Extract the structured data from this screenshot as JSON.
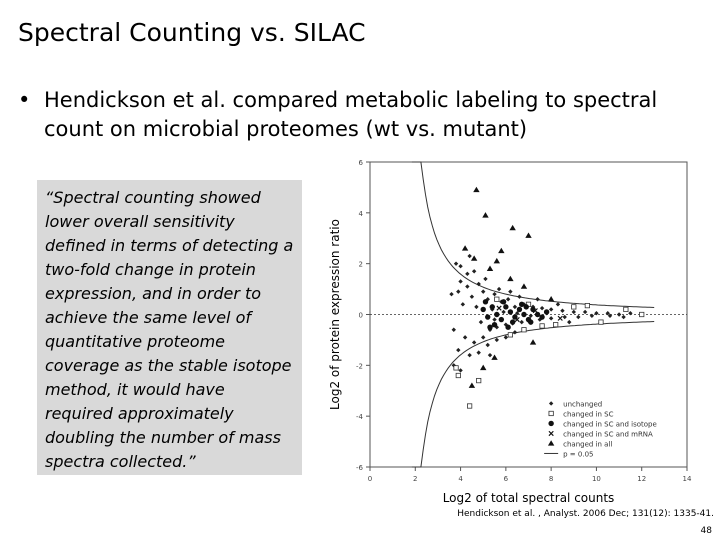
{
  "slide": {
    "title": "Spectral Counting vs. SILAC",
    "bullet_marker": "•",
    "bullet_text": "Hendickson et al. compared metabolic labeling to spectral count on microbial proteomes (wt vs. mutant)",
    "quote": "“Spectral counting showed lower overall sensitivity defined in terms of detecting a two-fold change in protein expression, and in order to achieve the same level of quantitative proteome coverage as the stable isotope method, it would have required approximately doubling the number of mass spectra collected.”",
    "citation": "Hendickson et al. , Analyst. 2006 Dec; 131(12): 1335-41.",
    "slide_number": "48"
  },
  "chart_data": {
    "type": "scatter",
    "xlabel": "Log2 of total spectral counts",
    "ylabel": "Log2 of protein expression ratio",
    "xlim": [
      0,
      14
    ],
    "ylim": [
      -6,
      6
    ],
    "xticks": [
      0,
      2,
      4,
      6,
      8,
      10,
      12,
      14
    ],
    "yticks": [
      -6,
      -4,
      -2,
      0,
      2,
      4,
      6
    ],
    "grid": false,
    "reference_line_y": 0,
    "legend_position": "bottom-right",
    "legend": [
      {
        "label": "unchanged",
        "marker": "diamond"
      },
      {
        "label": "changed in SC",
        "marker": "square-open"
      },
      {
        "label": "changed in SC and isotope",
        "marker": "circle"
      },
      {
        "label": "changed in SC and mRNA",
        "marker": "x"
      },
      {
        "label": "changed in all",
        "marker": "triangle"
      },
      {
        "label": "p = 0.05",
        "marker": "line"
      }
    ],
    "series": [
      {
        "name": "unchanged",
        "marker": "diamond",
        "points": [
          [
            4.3,
            1.6
          ],
          [
            4.0,
            1.3
          ],
          [
            3.9,
            0.9
          ],
          [
            4.3,
            1.1
          ],
          [
            4.6,
            1.7
          ],
          [
            4.8,
            1.2
          ],
          [
            5.0,
            0.9
          ],
          [
            4.5,
            0.7
          ],
          [
            5.2,
            0.6
          ],
          [
            5.5,
            0.8
          ],
          [
            5.8,
            0.5
          ],
          [
            6.1,
            0.6
          ],
          [
            6.4,
            0.3
          ],
          [
            6.8,
            0.4
          ],
          [
            7.2,
            0.3
          ],
          [
            7.6,
            0.25
          ],
          [
            8.0,
            0.2
          ],
          [
            8.5,
            0.15
          ],
          [
            9.0,
            0.1
          ],
          [
            9.5,
            0.1
          ],
          [
            10.0,
            0.05
          ],
          [
            10.5,
            0.05
          ],
          [
            11.0,
            0.0
          ],
          [
            11.5,
            0.05
          ],
          [
            4.2,
            -0.9
          ],
          [
            4.6,
            -1.1
          ],
          [
            5.0,
            -0.9
          ],
          [
            5.3,
            -0.6
          ],
          [
            5.6,
            -0.5
          ],
          [
            6.0,
            -0.4
          ],
          [
            6.3,
            -0.35
          ],
          [
            6.7,
            -0.3
          ],
          [
            7.0,
            -0.25
          ],
          [
            7.5,
            -0.2
          ],
          [
            8.0,
            -0.15
          ],
          [
            8.6,
            -0.1
          ],
          [
            9.2,
            -0.1
          ],
          [
            9.8,
            -0.05
          ],
          [
            10.6,
            -0.05
          ],
          [
            11.2,
            -0.1
          ],
          [
            3.9,
            -1.4
          ],
          [
            4.4,
            -1.6
          ],
          [
            4.8,
            -1.5
          ],
          [
            5.2,
            -1.2
          ],
          [
            5.6,
            -1.0
          ],
          [
            6.0,
            -0.9
          ],
          [
            6.4,
            -0.7
          ],
          [
            4.1,
            0.4
          ],
          [
            4.7,
            0.3
          ],
          [
            5.4,
            0.2
          ],
          [
            5.9,
            0.1
          ],
          [
            6.5,
            0.05
          ],
          [
            7.1,
            -0.05
          ],
          [
            7.8,
            0.05
          ],
          [
            3.8,
            2.0
          ],
          [
            3.7,
            -2.0
          ],
          [
            4.0,
            1.9
          ],
          [
            5.1,
            1.4
          ],
          [
            5.7,
            1.0
          ],
          [
            6.2,
            0.9
          ],
          [
            4.9,
            -0.3
          ],
          [
            5.5,
            -0.2
          ],
          [
            6.6,
            0.7
          ],
          [
            7.4,
            0.6
          ],
          [
            4.4,
            2.3
          ],
          [
            4.0,
            -2.2
          ],
          [
            5.3,
            -1.6
          ],
          [
            6.8,
            -0.6
          ],
          [
            8.3,
            0.4
          ],
          [
            8.8,
            -0.3
          ],
          [
            3.6,
            0.8
          ],
          [
            3.7,
            -0.6
          ]
        ]
      },
      {
        "name": "changed in SC",
        "marker": "square-open",
        "points": [
          [
            3.8,
            -2.1
          ],
          [
            3.9,
            -2.4
          ],
          [
            4.4,
            -3.6
          ],
          [
            4.8,
            -2.6
          ],
          [
            5.6,
            0.6
          ],
          [
            6.2,
            -0.8
          ],
          [
            7.0,
            0.4
          ],
          [
            8.2,
            -0.4
          ],
          [
            9.0,
            0.3
          ],
          [
            10.2,
            -0.3
          ],
          [
            11.3,
            0.2
          ],
          [
            12.0,
            0.0
          ],
          [
            9.6,
            0.35
          ],
          [
            6.8,
            -0.6
          ],
          [
            7.6,
            -0.45
          ]
        ]
      },
      {
        "name": "changed in SC and isotope",
        "marker": "circle",
        "points": [
          [
            5.0,
            0.2
          ],
          [
            5.2,
            -0.1
          ],
          [
            5.4,
            0.3
          ],
          [
            5.6,
            0.0
          ],
          [
            5.8,
            -0.2
          ],
          [
            6.0,
            0.3
          ],
          [
            6.2,
            0.1
          ],
          [
            6.4,
            -0.1
          ],
          [
            6.6,
            0.2
          ],
          [
            6.8,
            0.0
          ],
          [
            7.0,
            -0.2
          ],
          [
            7.2,
            0.2
          ],
          [
            7.4,
            0.0
          ],
          [
            7.6,
            -0.1
          ],
          [
            7.8,
            0.1
          ],
          [
            5.5,
            -0.4
          ],
          [
            5.9,
            0.5
          ],
          [
            6.3,
            -0.3
          ],
          [
            6.7,
            0.4
          ],
          [
            7.1,
            -0.3
          ],
          [
            5.1,
            0.5
          ],
          [
            5.3,
            -0.5
          ],
          [
            6.1,
            -0.5
          ],
          [
            6.9,
            0.3
          ]
        ]
      },
      {
        "name": "changed in SC and mRNA",
        "marker": "x",
        "points": [
          [
            5.7,
            0.25
          ],
          [
            6.5,
            -0.2
          ],
          [
            7.3,
            0.15
          ],
          [
            8.4,
            -0.15
          ]
        ]
      },
      {
        "name": "changed in all",
        "marker": "triangle",
        "points": [
          [
            4.2,
            2.6
          ],
          [
            4.7,
            4.9
          ],
          [
            5.1,
            3.9
          ],
          [
            5.6,
            2.1
          ],
          [
            6.3,
            3.4
          ],
          [
            6.2,
            1.4
          ],
          [
            7.0,
            3.1
          ],
          [
            5.8,
            2.5
          ],
          [
            6.8,
            1.1
          ],
          [
            5.3,
            1.8
          ],
          [
            4.6,
            2.2
          ],
          [
            5.5,
            -1.7
          ],
          [
            4.5,
            -2.8
          ],
          [
            5.0,
            -2.1
          ],
          [
            7.2,
            -1.1
          ],
          [
            8.0,
            0.6
          ]
        ]
      }
    ]
  }
}
